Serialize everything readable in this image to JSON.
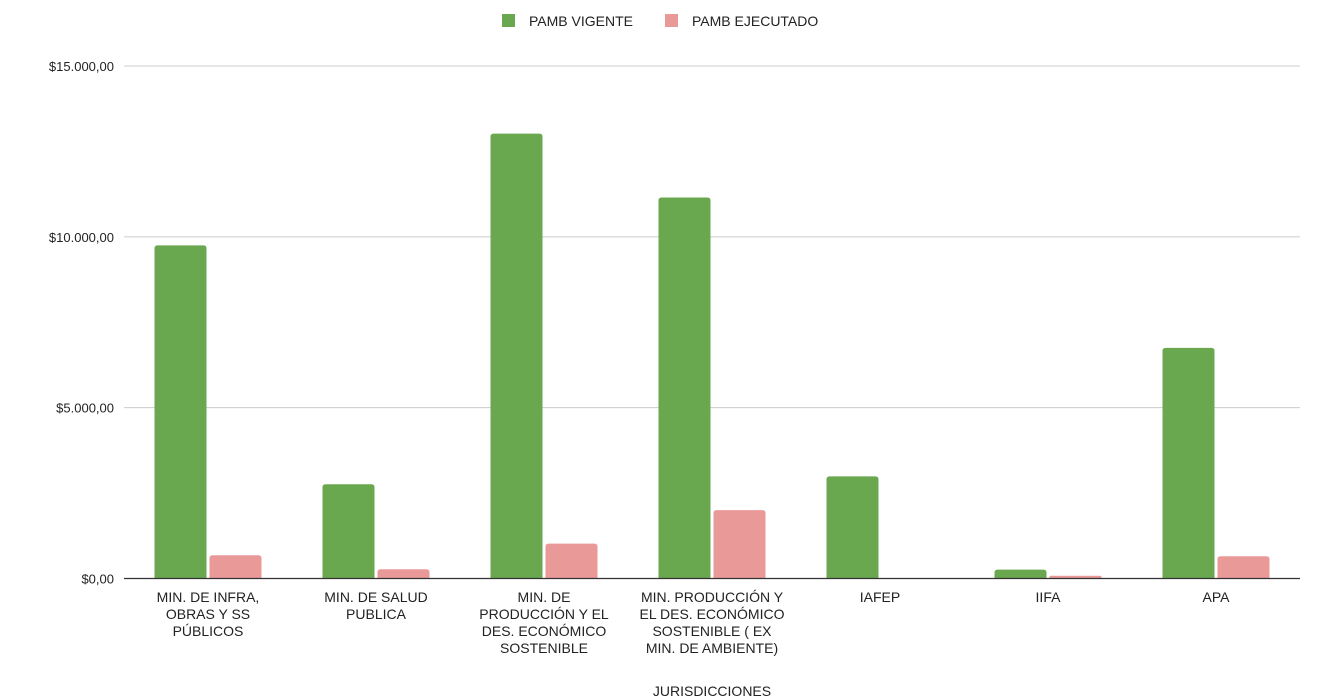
{
  "chart_data": {
    "type": "bar",
    "xlabel": "JURISDICCIONES",
    "ylabel": "",
    "ylim": [
      0,
      15000
    ],
    "yticks": [
      {
        "value": 0,
        "label": "$0,00"
      },
      {
        "value": 5000,
        "label": "$5.000,00"
      },
      {
        "value": 10000,
        "label": "$10.000,00"
      },
      {
        "value": 15000,
        "label": "$15.000,00"
      }
    ],
    "grid": true,
    "legend_position": "top-center",
    "categories": [
      [
        "MIN. DE INFRA,",
        "OBRAS Y SS",
        "PÚBLICOS"
      ],
      [
        "MIN. DE SALUD",
        "PUBLICA"
      ],
      [
        "MIN. DE",
        "PRODUCCIÓN Y EL",
        "DES. ECONÓMICO",
        "SOSTENIBLE"
      ],
      [
        "MIN.  PRODUCCIÓN Y",
        "EL DES. ECONÓMICO",
        "SOSTENIBLE ( EX",
        "MIN. DE AMBIENTE)"
      ],
      [
        "IAFEP"
      ],
      [
        "IIFA"
      ],
      [
        "APA"
      ]
    ],
    "series": [
      {
        "name": "PAMB VIGENTE",
        "color": "#6aa84f",
        "values": [
          9750,
          2760,
          13020,
          11150,
          2990,
          260,
          6750
        ]
      },
      {
        "name": "PAMB EJECUTADO",
        "color": "#ea9999",
        "values": [
          680,
          270,
          1020,
          2000,
          0,
          80,
          650
        ]
      }
    ]
  }
}
